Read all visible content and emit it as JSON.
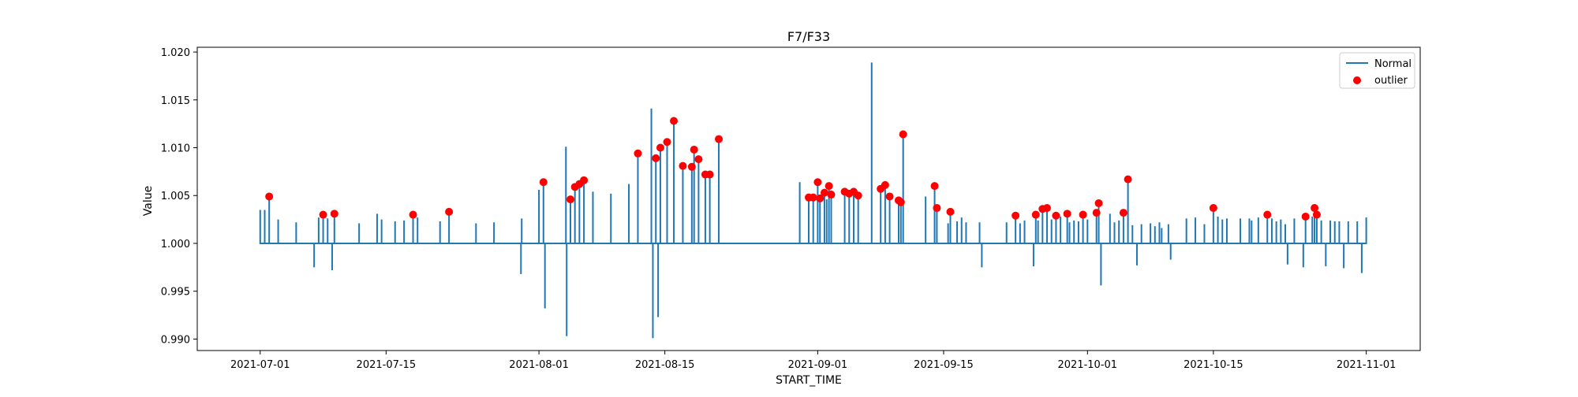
{
  "chart_data": {
    "type": "line",
    "title": "F7/F33",
    "xlabel": "START_TIME",
    "ylabel": "Value",
    "xlim": [
      "2021-06-24",
      "2021-11-07"
    ],
    "ylim": [
      0.9888,
      1.0205
    ],
    "xticks": [
      "2021-07-01",
      "2021-07-15",
      "2021-08-01",
      "2021-08-15",
      "2021-09-01",
      "2021-09-15",
      "2021-10-01",
      "2021-10-15",
      "2021-11-01"
    ],
    "yticks": [
      "0.990",
      "0.995",
      "1.000",
      "1.005",
      "1.010",
      "1.015",
      "1.020"
    ],
    "baseline": 1.0,
    "legend_position": "top-right",
    "legend": [
      {
        "label": "Normal",
        "kind": "line",
        "color": "#1f77b4"
      },
      {
        "label": "outlier",
        "kind": "marker",
        "color": "#ff0000"
      }
    ],
    "series": [
      {
        "name": "Normal",
        "color": "#1f77b4",
        "spikes": [
          [
            "2021-07-01",
            1.0035
          ],
          [
            "2021-07-01T12:00",
            1.0035
          ],
          [
            "2021-07-02",
            1.0049
          ],
          [
            "2021-07-03",
            1.0025
          ],
          [
            "2021-07-05",
            1.0022
          ],
          [
            "2021-07-07",
            0.9975
          ],
          [
            "2021-07-07T12:00",
            1.0027
          ],
          [
            "2021-07-08",
            1.003
          ],
          [
            "2021-07-08T12:00",
            1.0026
          ],
          [
            "2021-07-09",
            0.9972
          ],
          [
            "2021-07-09T06:00",
            1.0031
          ],
          [
            "2021-07-12",
            1.0021
          ],
          [
            "2021-07-14",
            1.0031
          ],
          [
            "2021-07-14T12:00",
            1.0025
          ],
          [
            "2021-07-16",
            1.0023
          ],
          [
            "2021-07-17",
            1.0024
          ],
          [
            "2021-07-18",
            1.003
          ],
          [
            "2021-07-18T12:00",
            1.0027
          ],
          [
            "2021-07-21",
            1.0023
          ],
          [
            "2021-07-22",
            1.0033
          ],
          [
            "2021-07-25",
            1.0021
          ],
          [
            "2021-07-27",
            1.0022
          ],
          [
            "2021-07-30",
            0.9968
          ],
          [
            "2021-07-30T02:00",
            1.0026
          ],
          [
            "2021-08-01",
            1.0056
          ],
          [
            "2021-08-01T12:00",
            1.0064
          ],
          [
            "2021-08-01T16:00",
            0.9932
          ],
          [
            "2021-08-04",
            1.0101
          ],
          [
            "2021-08-04T02:00",
            0.9903
          ],
          [
            "2021-08-04T12:00",
            1.0046
          ],
          [
            "2021-08-05",
            1.0059
          ],
          [
            "2021-08-05T12:00",
            1.0062
          ],
          [
            "2021-08-06",
            1.0066
          ],
          [
            "2021-08-07",
            1.0054
          ],
          [
            "2021-08-09",
            1.0052
          ],
          [
            "2021-08-11",
            1.0062
          ],
          [
            "2021-08-12",
            1.0094
          ],
          [
            "2021-08-13T12:00",
            1.0141
          ],
          [
            "2021-08-13T16:00",
            0.9901
          ],
          [
            "2021-08-14",
            1.0089
          ],
          [
            "2021-08-14T06:00",
            0.9923
          ],
          [
            "2021-08-14T12:00",
            1.01
          ],
          [
            "2021-08-15T06:00",
            1.0106
          ],
          [
            "2021-08-16",
            1.0128
          ],
          [
            "2021-08-17",
            1.0081
          ],
          [
            "2021-08-18",
            1.008
          ],
          [
            "2021-08-18T06:00",
            1.0098
          ],
          [
            "2021-08-18T18:00",
            1.0088
          ],
          [
            "2021-08-19T12:00",
            1.0072
          ],
          [
            "2021-08-20",
            1.0072
          ],
          [
            "2021-08-21",
            1.0109
          ],
          [
            "2021-08-30",
            1.0064
          ],
          [
            "2021-08-31",
            1.0048
          ],
          [
            "2021-08-31T12:00",
            1.0048
          ],
          [
            "2021-09-01",
            1.0064
          ],
          [
            "2021-09-01T06:00",
            1.0047
          ],
          [
            "2021-09-01T18:00",
            1.0053
          ],
          [
            "2021-09-02",
            1.0046
          ],
          [
            "2021-09-02T06:00",
            1.006
          ],
          [
            "2021-09-02T12:00",
            1.0051
          ],
          [
            "2021-09-04",
            1.0054
          ],
          [
            "2021-09-04T12:00",
            1.0052
          ],
          [
            "2021-09-05",
            1.0054
          ],
          [
            "2021-09-05T12:00",
            1.005
          ],
          [
            "2021-09-07",
            1.0189
          ],
          [
            "2021-09-08",
            1.0057
          ],
          [
            "2021-09-08T12:00",
            1.0061
          ],
          [
            "2021-09-09",
            1.0049
          ],
          [
            "2021-09-10",
            1.0045
          ],
          [
            "2021-09-10T06:00",
            1.0043
          ],
          [
            "2021-09-10T12:00",
            1.0114
          ],
          [
            "2021-09-13",
            1.0049
          ],
          [
            "2021-09-14",
            1.006
          ],
          [
            "2021-09-14T06:00",
            1.0037
          ],
          [
            "2021-09-15T12:00",
            1.0021
          ],
          [
            "2021-09-15T18:00",
            1.0033
          ],
          [
            "2021-09-16T12:00",
            1.0023
          ],
          [
            "2021-09-17",
            1.0027
          ],
          [
            "2021-09-17T12:00",
            1.0022
          ],
          [
            "2021-09-19",
            1.0022
          ],
          [
            "2021-09-19T06:00",
            0.9975
          ],
          [
            "2021-09-22",
            1.0022
          ],
          [
            "2021-09-23",
            1.0029
          ],
          [
            "2021-09-23T12:00",
            1.0021
          ],
          [
            "2021-09-24",
            1.0024
          ],
          [
            "2021-09-25",
            0.9976
          ],
          [
            "2021-09-25T06:00",
            1.003
          ],
          [
            "2021-09-25T12:00",
            1.0024
          ],
          [
            "2021-09-26",
            1.0036
          ],
          [
            "2021-09-26T12:00",
            1.0037
          ],
          [
            "2021-09-27",
            1.0025
          ],
          [
            "2021-09-27T12:00",
            1.0029
          ],
          [
            "2021-09-28",
            1.0028
          ],
          [
            "2021-09-28T18:00",
            1.0031
          ],
          [
            "2021-09-29",
            1.0022
          ],
          [
            "2021-09-29T12:00",
            1.0024
          ],
          [
            "2021-09-30",
            1.0023
          ],
          [
            "2021-09-30T12:00",
            1.003
          ],
          [
            "2021-10-01",
            1.0025
          ],
          [
            "2021-10-02",
            1.0032
          ],
          [
            "2021-10-02T06:00",
            1.0042
          ],
          [
            "2021-10-02T12:00",
            0.9956
          ],
          [
            "2021-10-03T12:00",
            1.0031
          ],
          [
            "2021-10-04",
            1.0022
          ],
          [
            "2021-10-04T12:00",
            1.0024
          ],
          [
            "2021-10-05",
            1.0032
          ],
          [
            "2021-10-05T12:00",
            1.0067
          ],
          [
            "2021-10-06",
            1.0019
          ],
          [
            "2021-10-06T12:00",
            0.9977
          ],
          [
            "2021-10-07",
            1.002
          ],
          [
            "2021-10-08",
            1.0021
          ],
          [
            "2021-10-08T12:00",
            1.0018
          ],
          [
            "2021-10-09",
            1.0022
          ],
          [
            "2021-10-09T06:00",
            1.0016
          ],
          [
            "2021-10-10",
            1.002
          ],
          [
            "2021-10-10T06:00",
            0.9983
          ],
          [
            "2021-10-12",
            1.0026
          ],
          [
            "2021-10-13",
            1.0027
          ],
          [
            "2021-10-14",
            1.002
          ],
          [
            "2021-10-15",
            1.0037
          ],
          [
            "2021-10-15T12:00",
            1.0028
          ],
          [
            "2021-10-16",
            1.0025
          ],
          [
            "2021-10-16T12:00",
            1.0026
          ],
          [
            "2021-10-18",
            1.0026
          ],
          [
            "2021-10-19",
            1.0026
          ],
          [
            "2021-10-19T06:00",
            1.0024
          ],
          [
            "2021-10-20",
            1.0027
          ],
          [
            "2021-10-21",
            1.003
          ],
          [
            "2021-10-21T12:00",
            1.0026
          ],
          [
            "2021-10-22",
            1.0023
          ],
          [
            "2021-10-22T12:00",
            1.0025
          ],
          [
            "2021-10-23",
            1.002
          ],
          [
            "2021-10-23T06:00",
            0.9978
          ],
          [
            "2021-10-24",
            1.0026
          ],
          [
            "2021-10-25",
            0.9975
          ],
          [
            "2021-10-25T06:00",
            1.0028
          ],
          [
            "2021-10-26",
            1.0028
          ],
          [
            "2021-10-26T06:00",
            1.0037
          ],
          [
            "2021-10-26T12:00",
            1.003
          ],
          [
            "2021-10-27",
            1.0024
          ],
          [
            "2021-10-27T12:00",
            0.9976
          ],
          [
            "2021-10-28",
            1.0024
          ],
          [
            "2021-10-28T12:00",
            1.0023
          ],
          [
            "2021-10-29",
            1.0023
          ],
          [
            "2021-10-29T12:00",
            0.9974
          ],
          [
            "2021-10-30",
            1.0023
          ],
          [
            "2021-10-31",
            1.0023
          ],
          [
            "2021-10-31T12:00",
            0.9969
          ],
          [
            "2021-11-01",
            1.0027
          ]
        ]
      },
      {
        "name": "outlier",
        "color": "#ff0000",
        "points": [
          [
            "2021-07-02",
            1.0049
          ],
          [
            "2021-07-08",
            1.003
          ],
          [
            "2021-07-09T06:00",
            1.0031
          ],
          [
            "2021-07-18",
            1.003
          ],
          [
            "2021-07-22",
            1.0033
          ],
          [
            "2021-08-01T12:00",
            1.0064
          ],
          [
            "2021-08-04T12:00",
            1.0046
          ],
          [
            "2021-08-05",
            1.0059
          ],
          [
            "2021-08-05T12:00",
            1.0062
          ],
          [
            "2021-08-06",
            1.0066
          ],
          [
            "2021-08-12",
            1.0094
          ],
          [
            "2021-08-14",
            1.0089
          ],
          [
            "2021-08-14T12:00",
            1.01
          ],
          [
            "2021-08-15T06:00",
            1.0106
          ],
          [
            "2021-08-16",
            1.0128
          ],
          [
            "2021-08-17",
            1.0081
          ],
          [
            "2021-08-18",
            1.008
          ],
          [
            "2021-08-18T06:00",
            1.0098
          ],
          [
            "2021-08-18T18:00",
            1.0088
          ],
          [
            "2021-08-19T12:00",
            1.0072
          ],
          [
            "2021-08-20",
            1.0072
          ],
          [
            "2021-08-21",
            1.0109
          ],
          [
            "2021-08-31",
            1.0048
          ],
          [
            "2021-08-31T12:00",
            1.0048
          ],
          [
            "2021-09-01",
            1.0064
          ],
          [
            "2021-09-01T06:00",
            1.0047
          ],
          [
            "2021-09-01T18:00",
            1.0053
          ],
          [
            "2021-09-02T06:00",
            1.006
          ],
          [
            "2021-09-02T12:00",
            1.0051
          ],
          [
            "2021-09-04",
            1.0054
          ],
          [
            "2021-09-04T12:00",
            1.0052
          ],
          [
            "2021-09-05",
            1.0054
          ],
          [
            "2021-09-05T12:00",
            1.005
          ],
          [
            "2021-09-08",
            1.0057
          ],
          [
            "2021-09-08T12:00",
            1.0061
          ],
          [
            "2021-09-09",
            1.0049
          ],
          [
            "2021-09-10",
            1.0045
          ],
          [
            "2021-09-10T06:00",
            1.0043
          ],
          [
            "2021-09-10T12:00",
            1.0114
          ],
          [
            "2021-09-14",
            1.006
          ],
          [
            "2021-09-14T06:00",
            1.0037
          ],
          [
            "2021-09-15T18:00",
            1.0033
          ],
          [
            "2021-09-23",
            1.0029
          ],
          [
            "2021-09-25T06:00",
            1.003
          ],
          [
            "2021-09-26",
            1.0036
          ],
          [
            "2021-09-26T12:00",
            1.0037
          ],
          [
            "2021-09-27T12:00",
            1.0029
          ],
          [
            "2021-09-28T18:00",
            1.0031
          ],
          [
            "2021-09-30T12:00",
            1.003
          ],
          [
            "2021-10-02",
            1.0032
          ],
          [
            "2021-10-02T06:00",
            1.0042
          ],
          [
            "2021-10-05",
            1.0032
          ],
          [
            "2021-10-05T12:00",
            1.0067
          ],
          [
            "2021-10-15",
            1.0037
          ],
          [
            "2021-10-21",
            1.003
          ],
          [
            "2021-10-25T06:00",
            1.0028
          ],
          [
            "2021-10-26T06:00",
            1.0037
          ],
          [
            "2021-10-26T12:00",
            1.003
          ]
        ]
      }
    ]
  }
}
